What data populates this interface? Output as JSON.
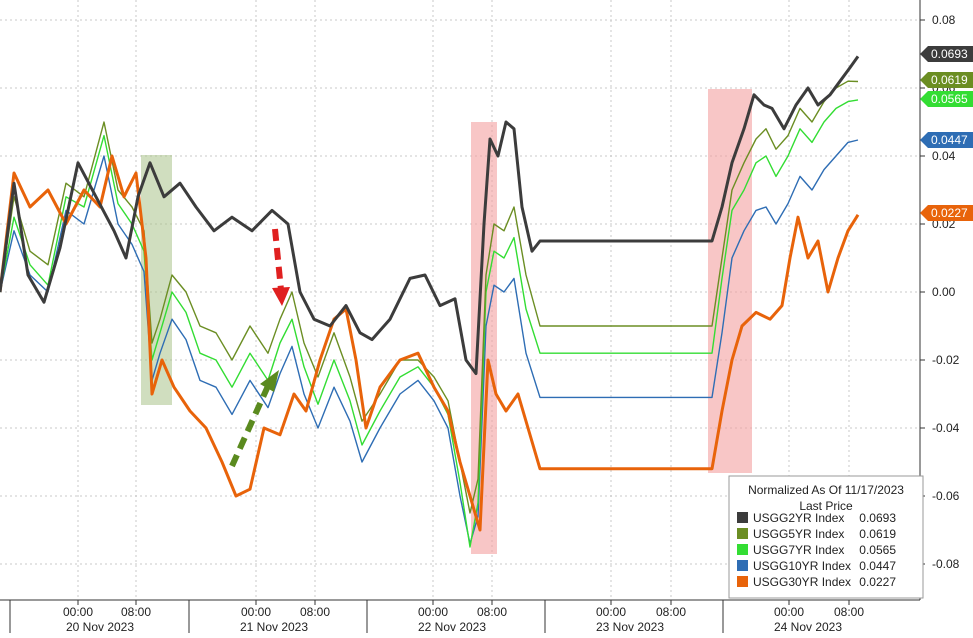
{
  "chart_data": {
    "type": "line",
    "title": "",
    "xlabel": "",
    "ylabel": "",
    "ylim": [
      -0.09,
      0.085
    ],
    "y_ticks": [
      "0.08",
      "0.06",
      "0.04",
      "0.02",
      "0.00",
      "-0.02",
      "-0.04",
      "-0.06",
      "-0.08"
    ],
    "y_tick_values": [
      0.08,
      0.06,
      0.04,
      0.02,
      0.0,
      -0.02,
      -0.04,
      -0.06,
      -0.08
    ],
    "x_time_ticks": [
      "00:00",
      "08:00",
      "00:00",
      "08:00",
      "00:00",
      "08:00",
      "00:00",
      "08:00",
      "00:00",
      "08:00"
    ],
    "x_day_labels": [
      "20 Nov 2023",
      "21 Nov 2023",
      "22 Nov 2023",
      "23 Nov 2023",
      "24 Nov 2023"
    ],
    "grid": true,
    "legend_position": "bottom-right",
    "legend": {
      "header1": "Normalized As Of 11/17/2023",
      "header2": "Last Price"
    },
    "series": [
      {
        "name": "USGG2YR Index",
        "last": "0.0693",
        "color": "#3c3c3c",
        "points": [
          [
            0,
            0.0
          ],
          [
            14,
            0.032
          ],
          [
            28,
            0.005
          ],
          [
            44,
            -0.003
          ],
          [
            60,
            0.013
          ],
          [
            78,
            0.038
          ],
          [
            96,
            0.028
          ],
          [
            114,
            0.018
          ],
          [
            126,
            0.01
          ],
          [
            138,
            0.028
          ],
          [
            150,
            0.038
          ],
          [
            164,
            0.028
          ],
          [
            180,
            0.032
          ],
          [
            196,
            0.025
          ],
          [
            214,
            0.018
          ],
          [
            232,
            0.022
          ],
          [
            252,
            0.018
          ],
          [
            272,
            0.024
          ],
          [
            288,
            0.02
          ],
          [
            300,
            0.0
          ],
          [
            314,
            -0.008
          ],
          [
            330,
            -0.01
          ],
          [
            346,
            -0.004
          ],
          [
            360,
            -0.012
          ],
          [
            372,
            -0.014
          ],
          [
            390,
            -0.008
          ],
          [
            410,
            0.004
          ],
          [
            425,
            0.005
          ],
          [
            440,
            -0.004
          ],
          [
            455,
            -0.002
          ],
          [
            466,
            -0.02
          ],
          [
            476,
            -0.024
          ],
          [
            484,
            0.02
          ],
          [
            490,
            0.045
          ],
          [
            498,
            0.04
          ],
          [
            506,
            0.05
          ],
          [
            514,
            0.048
          ],
          [
            522,
            0.025
          ],
          [
            532,
            0.012
          ],
          [
            540,
            0.015
          ],
          [
            712,
            0.015
          ],
          [
            722,
            0.025
          ],
          [
            732,
            0.038
          ],
          [
            744,
            0.048
          ],
          [
            754,
            0.058
          ],
          [
            764,
            0.055
          ],
          [
            772,
            0.054
          ],
          [
            784,
            0.048
          ],
          [
            796,
            0.055
          ],
          [
            808,
            0.06
          ],
          [
            818,
            0.055
          ],
          [
            830,
            0.058
          ],
          [
            840,
            0.062
          ],
          [
            850,
            0.066
          ],
          [
            858,
            0.0693
          ]
        ]
      },
      {
        "name": "USGG5YR Index",
        "last": "0.0619",
        "color": "#6b8e23",
        "points": [
          [
            0,
            0.0
          ],
          [
            14,
            0.028
          ],
          [
            30,
            0.012
          ],
          [
            48,
            0.008
          ],
          [
            66,
            0.032
          ],
          [
            84,
            0.028
          ],
          [
            104,
            0.05
          ],
          [
            118,
            0.03
          ],
          [
            132,
            0.025
          ],
          [
            144,
            0.018
          ],
          [
            152,
            -0.015
          ],
          [
            160,
            -0.008
          ],
          [
            172,
            0.005
          ],
          [
            186,
            0.0
          ],
          [
            200,
            -0.01
          ],
          [
            216,
            -0.012
          ],
          [
            232,
            -0.02
          ],
          [
            250,
            -0.01
          ],
          [
            268,
            -0.018
          ],
          [
            280,
            -0.008
          ],
          [
            292,
            0.0
          ],
          [
            304,
            -0.015
          ],
          [
            318,
            -0.025
          ],
          [
            334,
            -0.012
          ],
          [
            350,
            -0.025
          ],
          [
            362,
            -0.038
          ],
          [
            380,
            -0.03
          ],
          [
            400,
            -0.02
          ],
          [
            418,
            -0.02
          ],
          [
            434,
            -0.025
          ],
          [
            448,
            -0.032
          ],
          [
            460,
            -0.05
          ],
          [
            470,
            -0.065
          ],
          [
            478,
            -0.055
          ],
          [
            486,
            0.005
          ],
          [
            494,
            0.02
          ],
          [
            504,
            0.018
          ],
          [
            514,
            0.025
          ],
          [
            526,
            0.005
          ],
          [
            540,
            -0.01
          ],
          [
            712,
            -0.01
          ],
          [
            722,
            0.01
          ],
          [
            732,
            0.03
          ],
          [
            744,
            0.038
          ],
          [
            756,
            0.045
          ],
          [
            766,
            0.048
          ],
          [
            776,
            0.042
          ],
          [
            788,
            0.046
          ],
          [
            800,
            0.054
          ],
          [
            812,
            0.05
          ],
          [
            824,
            0.056
          ],
          [
            836,
            0.06
          ],
          [
            848,
            0.062
          ],
          [
            858,
            0.0619
          ]
        ]
      },
      {
        "name": "USGG7YR Index",
        "last": "0.0565",
        "color": "#33dd33",
        "points": [
          [
            0,
            0.0
          ],
          [
            14,
            0.022
          ],
          [
            30,
            0.008
          ],
          [
            48,
            0.002
          ],
          [
            66,
            0.028
          ],
          [
            84,
            0.025
          ],
          [
            104,
            0.046
          ],
          [
            118,
            0.026
          ],
          [
            132,
            0.02
          ],
          [
            144,
            0.012
          ],
          [
            152,
            -0.02
          ],
          [
            160,
            -0.012
          ],
          [
            172,
            0.0
          ],
          [
            186,
            -0.006
          ],
          [
            200,
            -0.018
          ],
          [
            216,
            -0.02
          ],
          [
            232,
            -0.028
          ],
          [
            250,
            -0.018
          ],
          [
            268,
            -0.026
          ],
          [
            280,
            -0.015
          ],
          [
            292,
            -0.008
          ],
          [
            304,
            -0.022
          ],
          [
            318,
            -0.033
          ],
          [
            334,
            -0.02
          ],
          [
            350,
            -0.032
          ],
          [
            362,
            -0.045
          ],
          [
            380,
            -0.035
          ],
          [
            400,
            -0.025
          ],
          [
            418,
            -0.022
          ],
          [
            434,
            -0.028
          ],
          [
            448,
            -0.036
          ],
          [
            460,
            -0.056
          ],
          [
            470,
            -0.075
          ],
          [
            478,
            -0.062
          ],
          [
            486,
            0.0
          ],
          [
            494,
            0.012
          ],
          [
            504,
            0.01
          ],
          [
            514,
            0.016
          ],
          [
            526,
            -0.005
          ],
          [
            540,
            -0.018
          ],
          [
            712,
            -0.018
          ],
          [
            722,
            0.004
          ],
          [
            732,
            0.024
          ],
          [
            744,
            0.03
          ],
          [
            756,
            0.038
          ],
          [
            766,
            0.04
          ],
          [
            776,
            0.034
          ],
          [
            788,
            0.04
          ],
          [
            800,
            0.048
          ],
          [
            812,
            0.044
          ],
          [
            824,
            0.05
          ],
          [
            836,
            0.054
          ],
          [
            848,
            0.056
          ],
          [
            858,
            0.0565
          ]
        ]
      },
      {
        "name": "USGG10YR Index",
        "last": "0.0447",
        "color": "#2e6db4",
        "points": [
          [
            0,
            0.0
          ],
          [
            14,
            0.018
          ],
          [
            30,
            0.005
          ],
          [
            48,
            0.0
          ],
          [
            66,
            0.024
          ],
          [
            84,
            0.02
          ],
          [
            104,
            0.04
          ],
          [
            118,
            0.02
          ],
          [
            132,
            0.014
          ],
          [
            144,
            0.006
          ],
          [
            152,
            -0.026
          ],
          [
            160,
            -0.018
          ],
          [
            172,
            -0.008
          ],
          [
            186,
            -0.014
          ],
          [
            200,
            -0.026
          ],
          [
            216,
            -0.028
          ],
          [
            232,
            -0.036
          ],
          [
            250,
            -0.026
          ],
          [
            268,
            -0.034
          ],
          [
            280,
            -0.024
          ],
          [
            292,
            -0.016
          ],
          [
            304,
            -0.03
          ],
          [
            318,
            -0.04
          ],
          [
            334,
            -0.028
          ],
          [
            350,
            -0.038
          ],
          [
            362,
            -0.05
          ],
          [
            380,
            -0.04
          ],
          [
            400,
            -0.03
          ],
          [
            418,
            -0.026
          ],
          [
            434,
            -0.032
          ],
          [
            448,
            -0.04
          ],
          [
            460,
            -0.06
          ],
          [
            470,
            -0.074
          ],
          [
            478,
            -0.066
          ],
          [
            486,
            -0.01
          ],
          [
            494,
            0.002
          ],
          [
            504,
            0.0
          ],
          [
            514,
            0.004
          ],
          [
            526,
            -0.018
          ],
          [
            540,
            -0.031
          ],
          [
            712,
            -0.031
          ],
          [
            722,
            -0.012
          ],
          [
            732,
            0.01
          ],
          [
            744,
            0.018
          ],
          [
            756,
            0.024
          ],
          [
            766,
            0.025
          ],
          [
            776,
            0.02
          ],
          [
            788,
            0.026
          ],
          [
            800,
            0.034
          ],
          [
            812,
            0.03
          ],
          [
            824,
            0.036
          ],
          [
            836,
            0.04
          ],
          [
            848,
            0.044
          ],
          [
            858,
            0.0447
          ]
        ]
      },
      {
        "name": "USGG30YR Index",
        "last": "0.0227",
        "color": "#e8630a",
        "points": [
          [
            0,
            0.0
          ],
          [
            14,
            0.035
          ],
          [
            30,
            0.025
          ],
          [
            48,
            0.03
          ],
          [
            66,
            0.02
          ],
          [
            84,
            0.03
          ],
          [
            100,
            0.025
          ],
          [
            112,
            0.04
          ],
          [
            124,
            0.028
          ],
          [
            136,
            0.035
          ],
          [
            146,
            0.01
          ],
          [
            152,
            -0.03
          ],
          [
            162,
            -0.02
          ],
          [
            174,
            -0.028
          ],
          [
            190,
            -0.035
          ],
          [
            206,
            -0.04
          ],
          [
            222,
            -0.05
          ],
          [
            236,
            -0.06
          ],
          [
            250,
            -0.058
          ],
          [
            264,
            -0.04
          ],
          [
            280,
            -0.042
          ],
          [
            294,
            -0.03
          ],
          [
            306,
            -0.035
          ],
          [
            320,
            -0.02
          ],
          [
            334,
            -0.008
          ],
          [
            346,
            -0.005
          ],
          [
            356,
            -0.02
          ],
          [
            366,
            -0.04
          ],
          [
            380,
            -0.028
          ],
          [
            400,
            -0.02
          ],
          [
            418,
            -0.018
          ],
          [
            434,
            -0.028
          ],
          [
            448,
            -0.035
          ],
          [
            460,
            -0.05
          ],
          [
            472,
            -0.062
          ],
          [
            480,
            -0.07
          ],
          [
            488,
            -0.02
          ],
          [
            496,
            -0.03
          ],
          [
            506,
            -0.035
          ],
          [
            518,
            -0.03
          ],
          [
            528,
            -0.04
          ],
          [
            540,
            -0.052
          ],
          [
            712,
            -0.052
          ],
          [
            722,
            -0.035
          ],
          [
            732,
            -0.02
          ],
          [
            742,
            -0.01
          ],
          [
            756,
            -0.006
          ],
          [
            770,
            -0.008
          ],
          [
            782,
            -0.004
          ],
          [
            790,
            0.01
          ],
          [
            798,
            0.022
          ],
          [
            808,
            0.01
          ],
          [
            818,
            0.015
          ],
          [
            828,
            0.0
          ],
          [
            838,
            0.01
          ],
          [
            848,
            0.018
          ],
          [
            858,
            0.0227
          ]
        ]
      }
    ]
  }
}
